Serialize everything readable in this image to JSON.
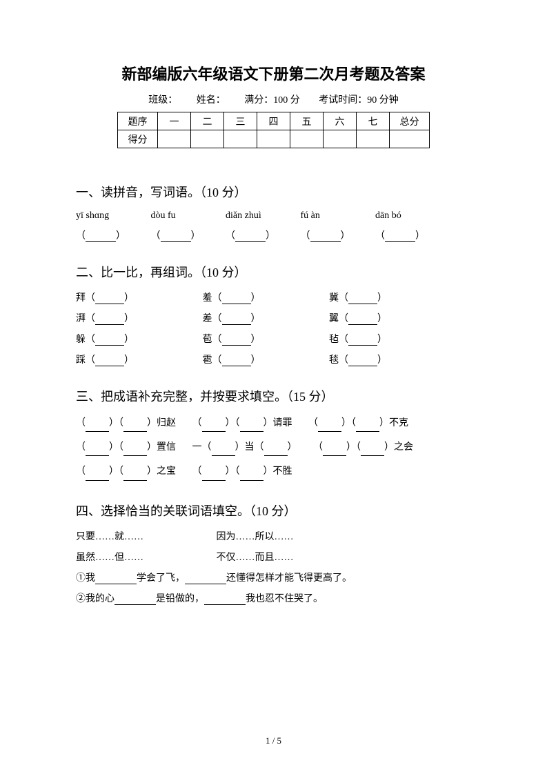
{
  "title": "新部编版六年级语文下册第二次月考题及答案",
  "info": {
    "class_label": "班级：",
    "name_label": "姓名：",
    "full_score": "满分：100 分",
    "exam_time": "考试时间：90 分钟"
  },
  "score_table": {
    "row1": [
      "题序",
      "一",
      "二",
      "三",
      "四",
      "五",
      "六",
      "七",
      "总分"
    ],
    "row2_label": "得分"
  },
  "section1": {
    "title": "一、读拼音，写词语。（10 分）",
    "pinyin": [
      "yī shɑng",
      "dòu  fu",
      "diǎn  zhuì",
      "fú  àn",
      "dān  bó"
    ]
  },
  "section2": {
    "title": "二、比一比，再组词。（10 分）",
    "rows": [
      [
        "拜",
        "羞",
        "冀"
      ],
      [
        "湃",
        "差",
        "翼"
      ],
      [
        "躲",
        "苞",
        "毡"
      ],
      [
        "踩",
        "雹",
        "毯"
      ]
    ]
  },
  "section3": {
    "title": "三、把成语补充完整，并按要求填空。（15 分）",
    "items": [
      {
        "suffix": "归赵"
      },
      {
        "suffix": "请罪"
      },
      {
        "suffix": "不克"
      },
      {
        "suffix": "置信"
      },
      {
        "prefix": "一",
        "mid": "当"
      },
      {
        "suffix": "之会"
      },
      {
        "suffix": "之宝"
      },
      {
        "suffix": "不胜"
      }
    ]
  },
  "section4": {
    "title": "四、选择恰当的关联词语填空。（10 分）",
    "conj_rows": [
      [
        "只要……就……",
        "因为……所以……"
      ],
      [
        "虽然……但……",
        "不仅……而且……"
      ]
    ],
    "sentences": [
      {
        "num": "①",
        "p1": "我",
        "p2": "学会了飞，",
        "p3": "还懂得怎样才能飞得更高了。"
      },
      {
        "num": "②",
        "p1": "我的心",
        "p2": "是铅做的，",
        "p3": "我也忍不住哭了。"
      }
    ]
  },
  "page_num": "1 / 5",
  "colors": {
    "text": "#000000",
    "background": "#ffffff",
    "border": "#000000"
  },
  "typography": {
    "title_fontsize": 22,
    "section_fontsize": 18,
    "body_fontsize": 14,
    "title_font": "SimHei",
    "body_font": "SimSun"
  }
}
